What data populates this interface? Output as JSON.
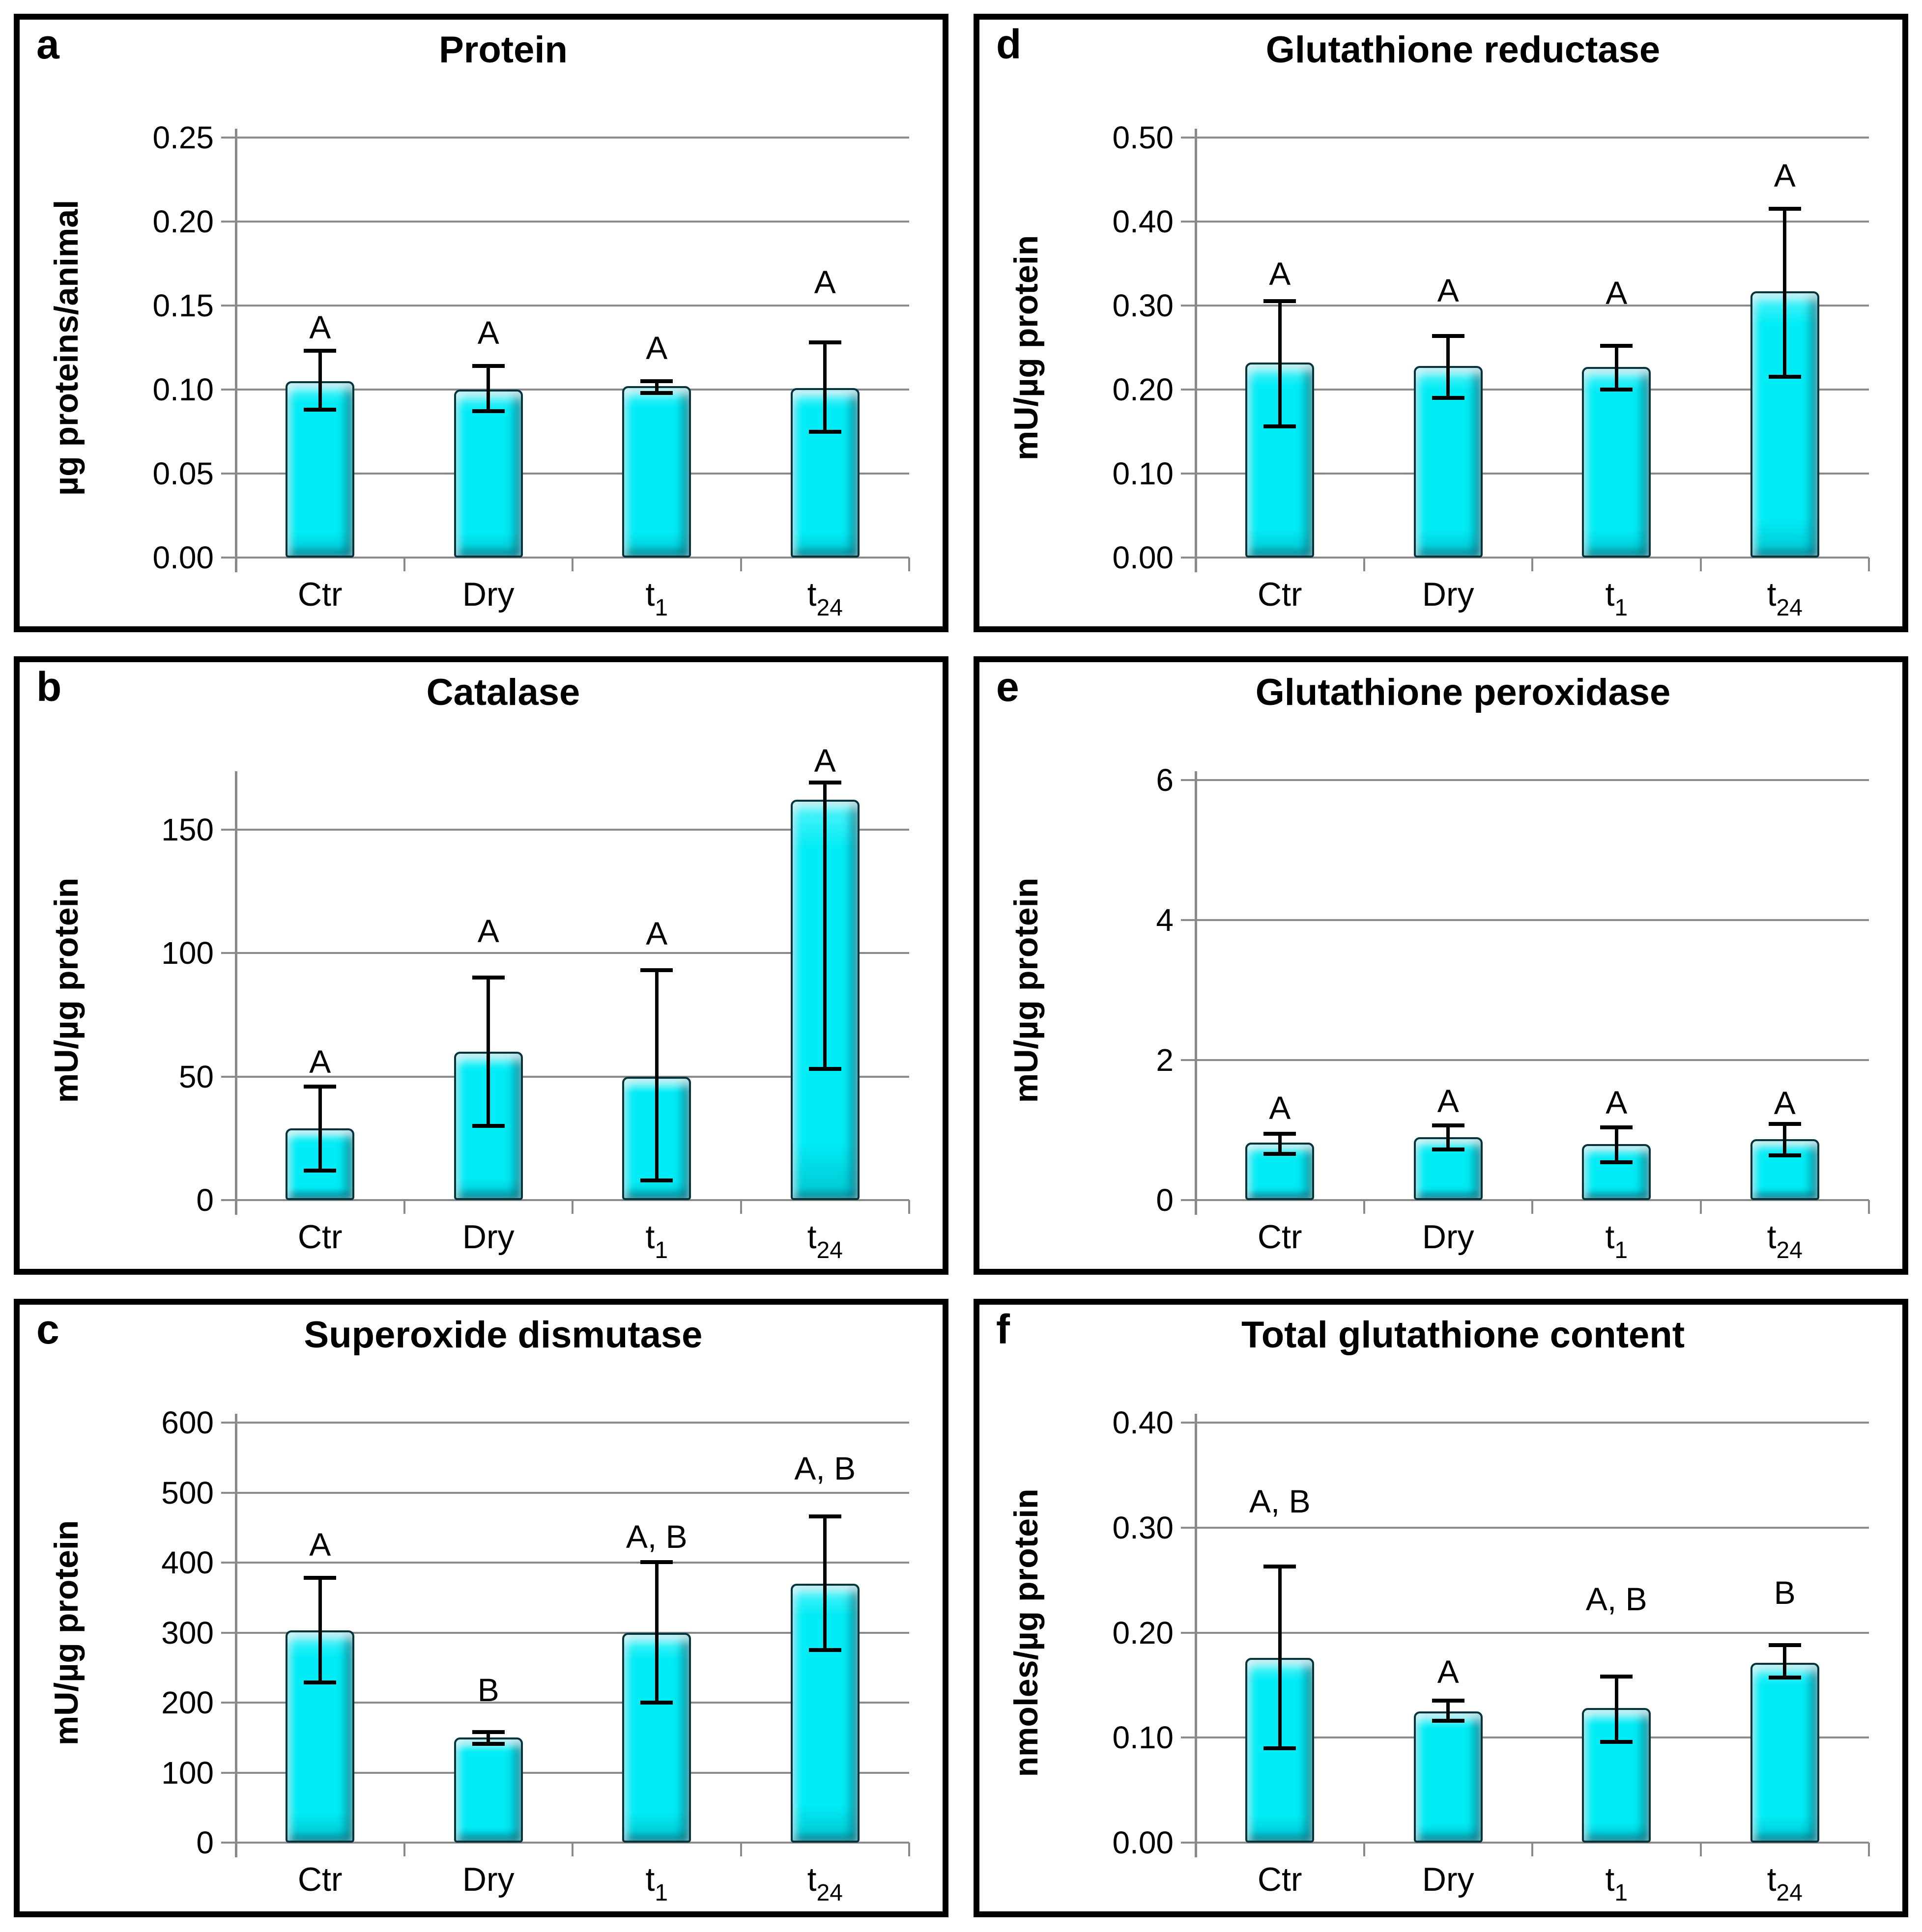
{
  "figure": {
    "background": "#ffffff",
    "panel_border_color": "#000000"
  },
  "colors": {
    "bar_fill": "#00ecf6",
    "bar_edge": "#05343c",
    "grid": "#8a8a8a",
    "axis": "#8a8a8a",
    "error": "#000000",
    "text": "#000000"
  },
  "chart_data": [
    {
      "id": "a",
      "panel_label": "a",
      "type": "bar",
      "title": "Protein",
      "xlabel": "",
      "ylabel": "µg proteins/animal",
      "ylim": [
        0,
        0.25
      ],
      "grid": true,
      "legend": null,
      "yticks": [
        {
          "v": 0.0,
          "label": "0.00"
        },
        {
          "v": 0.05,
          "label": "0.05"
        },
        {
          "v": 0.1,
          "label": "0.10"
        },
        {
          "v": 0.15,
          "label": "0.15"
        },
        {
          "v": 0.2,
          "label": "0.20"
        },
        {
          "v": 0.25,
          "label": "0.25"
        }
      ],
      "categories": [
        {
          "base": "Ctr",
          "sub": ""
        },
        {
          "base": "Dry",
          "sub": ""
        },
        {
          "base": "t",
          "sub": "1"
        },
        {
          "base": "t",
          "sub": "24"
        }
      ],
      "bars": [
        {
          "category": "Ctr",
          "value": 0.105,
          "err_low": 0.088,
          "err_high": 0.123,
          "sig": "A",
          "sig_y": 0.137
        },
        {
          "category": "Dry",
          "value": 0.1,
          "err_low": 0.087,
          "err_high": 0.114,
          "sig": "A",
          "sig_y": 0.134
        },
        {
          "category": "t1",
          "value": 0.102,
          "err_low": 0.098,
          "err_high": 0.105,
          "sig": "A",
          "sig_y": 0.125
        },
        {
          "category": "t24",
          "value": 0.101,
          "err_low": 0.075,
          "err_high": 0.128,
          "sig": "A",
          "sig_y": 0.164
        }
      ]
    },
    {
      "id": "d",
      "panel_label": "d",
      "type": "bar",
      "title": "Glutathione reductase",
      "xlabel": "",
      "ylabel": "mU/µg protein",
      "ylim": [
        0,
        0.5
      ],
      "grid": true,
      "legend": null,
      "yticks": [
        {
          "v": 0.0,
          "label": "0.00"
        },
        {
          "v": 0.1,
          "label": "0.10"
        },
        {
          "v": 0.2,
          "label": "0.20"
        },
        {
          "v": 0.3,
          "label": "0.30"
        },
        {
          "v": 0.4,
          "label": "0.40"
        },
        {
          "v": 0.5,
          "label": "0.50"
        }
      ],
      "categories": [
        {
          "base": "Ctr",
          "sub": ""
        },
        {
          "base": "Dry",
          "sub": ""
        },
        {
          "base": "t",
          "sub": "1"
        },
        {
          "base": "t",
          "sub": "24"
        }
      ],
      "bars": [
        {
          "category": "Ctr",
          "value": 0.232,
          "err_low": 0.156,
          "err_high": 0.305,
          "sig": "A",
          "sig_y": 0.338
        },
        {
          "category": "Dry",
          "value": 0.228,
          "err_low": 0.19,
          "err_high": 0.264,
          "sig": "A",
          "sig_y": 0.318
        },
        {
          "category": "t1",
          "value": 0.227,
          "err_low": 0.2,
          "err_high": 0.252,
          "sig": "A",
          "sig_y": 0.315
        },
        {
          "category": "t24",
          "value": 0.317,
          "err_low": 0.215,
          "err_high": 0.415,
          "sig": "A",
          "sig_y": 0.455
        }
      ]
    },
    {
      "id": "b",
      "panel_label": "b",
      "type": "bar",
      "title": "Catalase",
      "xlabel": "",
      "ylabel": "mU/µg protein",
      "ylim": [
        0,
        170
      ],
      "grid": true,
      "legend": null,
      "yticks": [
        {
          "v": 0,
          "label": "0"
        },
        {
          "v": 50,
          "label": "50"
        },
        {
          "v": 100,
          "label": "100"
        },
        {
          "v": 150,
          "label": "150"
        }
      ],
      "categories": [
        {
          "base": "Ctr",
          "sub": ""
        },
        {
          "base": "Dry",
          "sub": ""
        },
        {
          "base": "t",
          "sub": "1"
        },
        {
          "base": "t",
          "sub": "24"
        }
      ],
      "bars": [
        {
          "category": "Ctr",
          "value": 29,
          "err_low": 12,
          "err_high": 46,
          "sig": "A",
          "sig_y": 56
        },
        {
          "category": "Dry",
          "value": 60,
          "err_low": 30,
          "err_high": 90,
          "sig": "A",
          "sig_y": 109
        },
        {
          "category": "t1",
          "value": 50,
          "err_low": 8,
          "err_high": 93,
          "sig": "A",
          "sig_y": 108
        },
        {
          "category": "t24",
          "value": 162,
          "err_low": 53,
          "err_high": 169,
          "sig": "A",
          "sig_y": 178
        }
      ]
    },
    {
      "id": "e",
      "panel_label": "e",
      "type": "bar",
      "title": "Glutathione peroxidase",
      "xlabel": "",
      "ylabel": "mU/µg protein",
      "ylim": [
        0,
        6
      ],
      "grid": true,
      "legend": null,
      "yticks": [
        {
          "v": 0,
          "label": "0"
        },
        {
          "v": 2,
          "label": "2"
        },
        {
          "v": 4,
          "label": "4"
        },
        {
          "v": 6,
          "label": "6"
        }
      ],
      "categories": [
        {
          "base": "Ctr",
          "sub": ""
        },
        {
          "base": "Dry",
          "sub": ""
        },
        {
          "base": "t",
          "sub": "1"
        },
        {
          "base": "t",
          "sub": "24"
        }
      ],
      "bars": [
        {
          "category": "Ctr",
          "value": 0.82,
          "err_low": 0.66,
          "err_high": 0.95,
          "sig": "A",
          "sig_y": 1.32
        },
        {
          "category": "Dry",
          "value": 0.9,
          "err_low": 0.72,
          "err_high": 1.07,
          "sig": "A",
          "sig_y": 1.42
        },
        {
          "category": "t1",
          "value": 0.8,
          "err_low": 0.54,
          "err_high": 1.04,
          "sig": "A",
          "sig_y": 1.4
        },
        {
          "category": "t24",
          "value": 0.87,
          "err_low": 0.64,
          "err_high": 1.09,
          "sig": "A",
          "sig_y": 1.39
        }
      ]
    },
    {
      "id": "c",
      "panel_label": "c",
      "type": "bar",
      "title": "Superoxide dismutase",
      "xlabel": "",
      "ylabel": "mU/µg protein",
      "ylim": [
        0,
        600
      ],
      "grid": true,
      "legend": null,
      "yticks": [
        {
          "v": 0,
          "label": "0"
        },
        {
          "v": 100,
          "label": "100"
        },
        {
          "v": 200,
          "label": "200"
        },
        {
          "v": 300,
          "label": "300"
        },
        {
          "v": 400,
          "label": "400"
        },
        {
          "v": 500,
          "label": "500"
        },
        {
          "v": 600,
          "label": "600"
        }
      ],
      "categories": [
        {
          "base": "Ctr",
          "sub": ""
        },
        {
          "base": "Dry",
          "sub": ""
        },
        {
          "base": "t",
          "sub": "1"
        },
        {
          "base": "t",
          "sub": "24"
        }
      ],
      "bars": [
        {
          "category": "Ctr",
          "value": 303,
          "err_low": 229,
          "err_high": 378,
          "sig": "A",
          "sig_y": 426
        },
        {
          "category": "Dry",
          "value": 150,
          "err_low": 141,
          "err_high": 158,
          "sig": "B",
          "sig_y": 218
        },
        {
          "category": "t1",
          "value": 300,
          "err_low": 200,
          "err_high": 401,
          "sig": "A, B",
          "sig_y": 437
        },
        {
          "category": "t24",
          "value": 370,
          "err_low": 275,
          "err_high": 466,
          "sig": "A, B",
          "sig_y": 535
        }
      ]
    },
    {
      "id": "f",
      "panel_label": "f",
      "type": "bar",
      "title": "Total glutathione content",
      "xlabel": "",
      "ylabel": "nmoles/µg protein",
      "ylim": [
        0,
        0.4
      ],
      "grid": true,
      "legend": null,
      "yticks": [
        {
          "v": 0.0,
          "label": "0.00"
        },
        {
          "v": 0.1,
          "label": "0.10"
        },
        {
          "v": 0.2,
          "label": "0.20"
        },
        {
          "v": 0.3,
          "label": "0.30"
        },
        {
          "v": 0.4,
          "label": "0.40"
        }
      ],
      "categories": [
        {
          "base": "Ctr",
          "sub": ""
        },
        {
          "base": "Dry",
          "sub": ""
        },
        {
          "base": "t",
          "sub": "1"
        },
        {
          "base": "t",
          "sub": "24"
        }
      ],
      "bars": [
        {
          "category": "Ctr",
          "value": 0.176,
          "err_low": 0.09,
          "err_high": 0.263,
          "sig": "A, B",
          "sig_y": 0.325
        },
        {
          "category": "Dry",
          "value": 0.125,
          "err_low": 0.116,
          "err_high": 0.135,
          "sig": "A",
          "sig_y": 0.163
        },
        {
          "category": "t1",
          "value": 0.128,
          "err_low": 0.096,
          "err_high": 0.158,
          "sig": "A, B",
          "sig_y": 0.232
        },
        {
          "category": "t24",
          "value": 0.171,
          "err_low": 0.157,
          "err_high": 0.188,
          "sig": "B",
          "sig_y": 0.238
        }
      ]
    }
  ]
}
